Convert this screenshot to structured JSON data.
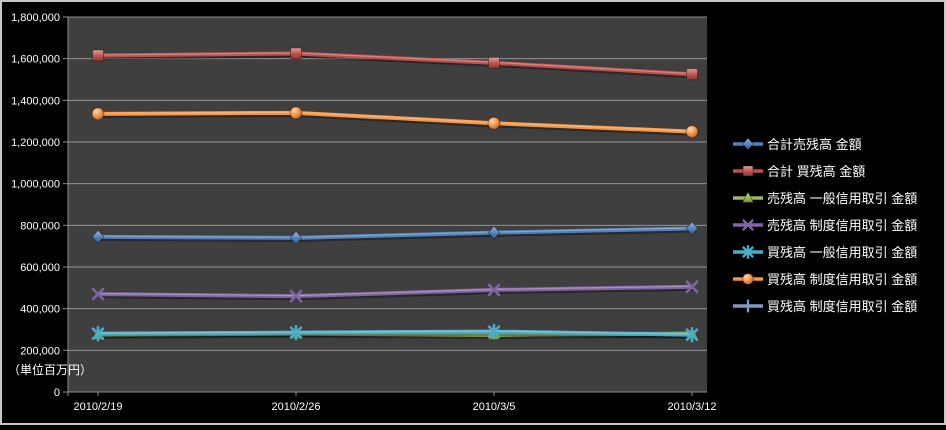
{
  "chart_data": {
    "type": "line",
    "title": "",
    "unit_label": "（単位百万円）",
    "categories": [
      "2010/2/19",
      "2010/2/26",
      "2010/3/5",
      "2010/3/12"
    ],
    "y_axis": {
      "min": 0,
      "max": 1800000,
      "step": 200000,
      "tick_labels": [
        "0",
        "200,000",
        "400,000",
        "600,000",
        "800,000",
        "1,000,000",
        "1,200,000",
        "1,400,000",
        "1,600,000",
        "1,800,000"
      ]
    },
    "grid": true,
    "legend_position": "right",
    "series": [
      {
        "name": "合計売残高 金額",
        "color": "#4F81BD",
        "marker": "diamond",
        "values": [
          745000,
          740000,
          765000,
          785000
        ]
      },
      {
        "name": "合計 買残高 金額",
        "color": "#C0504D",
        "marker": "square",
        "values": [
          1615000,
          1625000,
          1580000,
          1525000
        ]
      },
      {
        "name": "売残高 一般信用取引 金額",
        "color": "#9BBB59",
        "marker": "triangle",
        "values": [
          275000,
          280000,
          275000,
          280000
        ]
      },
      {
        "name": "売残高 制度信用取引 金額",
        "color": "#8064A2",
        "marker": "x",
        "values": [
          470000,
          460000,
          490000,
          505000
        ]
      },
      {
        "name": "買残高 一般信用取引 金額",
        "color": "#4BACC6",
        "marker": "star",
        "values": [
          280000,
          285000,
          290000,
          275000
        ]
      },
      {
        "name": "買残高 制度信用取引 金額",
        "color": "#F79646",
        "marker": "circle",
        "values": [
          1335000,
          1340000,
          1290000,
          1250000
        ]
      },
      {
        "name": "買残高 制度信用取引 金額",
        "color": "#8398BE",
        "marker": "plus",
        "values": [
          null,
          null,
          null,
          null
        ]
      }
    ],
    "colors": {
      "background": "#000000",
      "plot_background": "#3F3F3F",
      "gridline": "#A3A3A3",
      "axis": "#8F8F8F",
      "text": "#FFFFFF",
      "frame": "#C8C8C8"
    }
  }
}
